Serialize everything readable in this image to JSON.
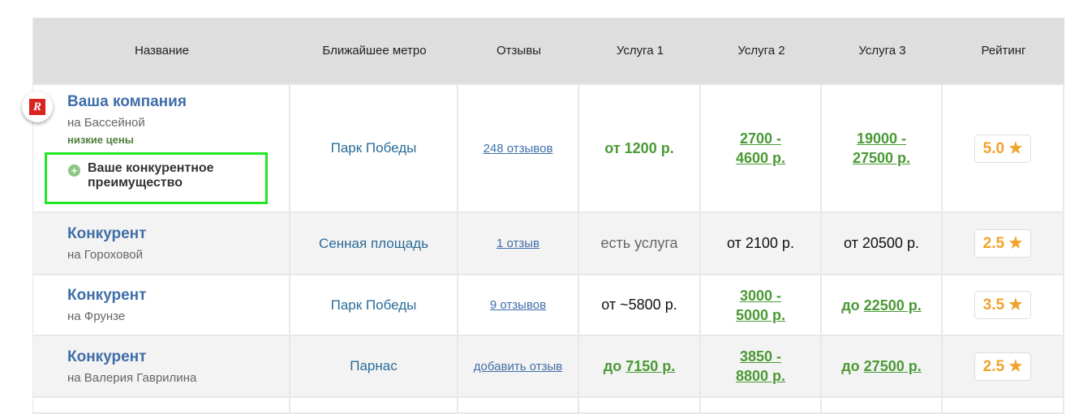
{
  "headers": [
    "Название",
    "Ближайшее метро",
    "Отзывы",
    "Услуга 1",
    "Услуга 2",
    "Услуга 3",
    "Рейтинг"
  ],
  "logo_text": "R",
  "rows": [
    {
      "name": "Ваша компания",
      "address": "на Бассейной",
      "tag": "низкие цены",
      "advantage": "Ваше конкурентное преимущество",
      "metro": "Парк Победы",
      "reviews": "248 отзывов",
      "s1": {
        "prefix": "",
        "text": "от 1200 р.",
        "style": "green"
      },
      "s2": {
        "prefix": "",
        "text": "2700 - 4600 р.",
        "style": "green-u"
      },
      "s3": {
        "prefix": "",
        "text": "19000 - 27500 р.",
        "style": "green-u"
      },
      "rating": "5.0"
    },
    {
      "name": "Конкурент",
      "address": "на Гороховой",
      "metro": "Сенная площадь",
      "reviews": "1 отзыв",
      "s1": {
        "prefix": "",
        "text": "есть услуга",
        "style": "grey"
      },
      "s2": {
        "prefix": "",
        "text": "от 2100 р.",
        "style": "plain"
      },
      "s3": {
        "prefix": "",
        "text": "от 20500 р.",
        "style": "plain"
      },
      "rating": "2.5"
    },
    {
      "name": "Конкурент",
      "address": "на Фрунзе",
      "metro": "Парк Победы",
      "reviews": "9 отзывов",
      "s1": {
        "prefix": "",
        "text": "от ~5800 р.",
        "style": "plain"
      },
      "s2": {
        "prefix": "",
        "text": "3000 - 5000 р.",
        "style": "green-u"
      },
      "s3": {
        "prefix": "до ",
        "text": "22500 р.",
        "style": "green-u"
      },
      "rating": "3.5"
    },
    {
      "name": "Конкурент",
      "address": "на Валерия Гаврилина",
      "metro": "Парнас",
      "reviews": "добавить отзыв",
      "s1": {
        "prefix": "до ",
        "text": "7150 р.",
        "style": "green-u"
      },
      "s2": {
        "prefix": "",
        "text": "3850 - 8800 р.",
        "style": "green-u"
      },
      "s3": {
        "prefix": "до ",
        "text": "27500 р.",
        "style": "green-u"
      },
      "rating": "2.5"
    }
  ]
}
